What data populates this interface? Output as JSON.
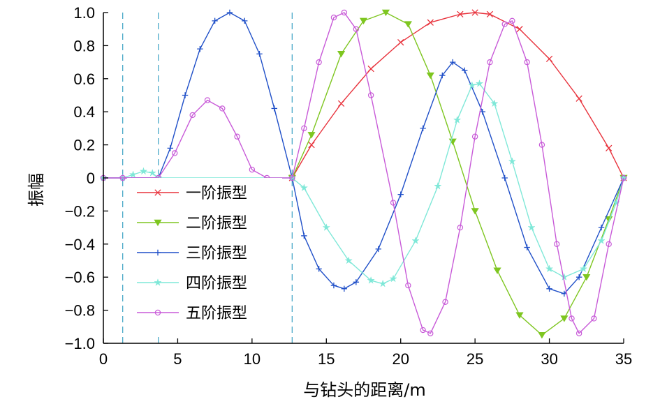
{
  "chart_data": {
    "type": "line",
    "xlabel": "与钻头的距离/m",
    "ylabel": "振幅",
    "xlim": [
      0,
      35
    ],
    "ylim": [
      -1.0,
      1.0
    ],
    "x_ticks": [
      0,
      5,
      10,
      15,
      20,
      25,
      30,
      35
    ],
    "y_ticks": [
      -1.0,
      -0.8,
      -0.6,
      -0.4,
      -0.2,
      0,
      0.2,
      0.4,
      0.6,
      0.8,
      1.0
    ],
    "x_tick_labels": [
      "0",
      "5",
      "10",
      "15",
      "20",
      "25",
      "30",
      "35"
    ],
    "y_tick_labels": [
      "−1.0",
      "−0.8",
      "−0.6",
      "−0.4",
      "−0.2",
      "0",
      "0.2",
      "0.4",
      "0.6",
      "0.8",
      "1.0"
    ],
    "grid": false,
    "legend_position": "left-lower",
    "reference_lines_x": [
      1.3,
      3.7,
      12.7
    ],
    "series": [
      {
        "name": "一阶振型",
        "color": "#e8323c",
        "marker": "x",
        "points": [
          [
            12.7,
            0
          ],
          [
            14,
            0.2
          ],
          [
            16,
            0.45
          ],
          [
            18,
            0.66
          ],
          [
            20,
            0.82
          ],
          [
            22,
            0.94
          ],
          [
            24,
            0.99
          ],
          [
            25,
            1.0
          ],
          [
            26,
            0.99
          ],
          [
            28,
            0.9
          ],
          [
            30,
            0.72
          ],
          [
            32,
            0.48
          ],
          [
            34,
            0.18
          ],
          [
            35,
            0
          ]
        ]
      },
      {
        "name": "二阶振型",
        "color": "#7ec620",
        "marker": "triangle-down",
        "points": [
          [
            12.7,
            0
          ],
          [
            14,
            0.26
          ],
          [
            16,
            0.75
          ],
          [
            17.5,
            0.95
          ],
          [
            19,
            1.0
          ],
          [
            20.5,
            0.93
          ],
          [
            22,
            0.62
          ],
          [
            23.5,
            0.22
          ],
          [
            25,
            -0.2
          ],
          [
            26.5,
            -0.56
          ],
          [
            28,
            -0.83
          ],
          [
            29.5,
            -0.95
          ],
          [
            31,
            -0.85
          ],
          [
            32.5,
            -0.6
          ],
          [
            34,
            -0.25
          ],
          [
            35,
            0
          ]
        ]
      },
      {
        "name": "三阶振型",
        "color": "#1f4fc8",
        "marker": "plus",
        "points": [
          [
            0,
            0
          ],
          [
            1.3,
            0
          ],
          [
            3.7,
            0
          ],
          [
            4.5,
            0.18
          ],
          [
            5.5,
            0.5
          ],
          [
            6.5,
            0.78
          ],
          [
            7.5,
            0.95
          ],
          [
            8.5,
            1.0
          ],
          [
            9.5,
            0.95
          ],
          [
            10.5,
            0.75
          ],
          [
            11.5,
            0.42
          ],
          [
            12.7,
            0
          ],
          [
            13.5,
            -0.35
          ],
          [
            14.5,
            -0.55
          ],
          [
            15.5,
            -0.65
          ],
          [
            16.2,
            -0.67
          ],
          [
            17,
            -0.63
          ],
          [
            18.5,
            -0.43
          ],
          [
            20,
            -0.1
          ],
          [
            21.5,
            0.3
          ],
          [
            22.8,
            0.62
          ],
          [
            23.5,
            0.7
          ],
          [
            24.3,
            0.65
          ],
          [
            25.5,
            0.4
          ],
          [
            27,
            0.0
          ],
          [
            28.5,
            -0.42
          ],
          [
            30,
            -0.67
          ],
          [
            31,
            -0.7
          ],
          [
            32,
            -0.6
          ],
          [
            33.5,
            -0.3
          ],
          [
            35,
            0
          ]
        ]
      },
      {
        "name": "四阶振型",
        "color": "#7fe8d8",
        "marker": "star",
        "points": [
          [
            0,
            0
          ],
          [
            1.3,
            0
          ],
          [
            2,
            0.02
          ],
          [
            2.7,
            0.04
          ],
          [
            3.3,
            0.03
          ],
          [
            3.7,
            0
          ],
          [
            12.7,
            0
          ],
          [
            13.5,
            -0.06
          ],
          [
            15,
            -0.3
          ],
          [
            16.5,
            -0.5
          ],
          [
            18,
            -0.62
          ],
          [
            18.8,
            -0.64
          ],
          [
            19.5,
            -0.61
          ],
          [
            21,
            -0.38
          ],
          [
            22.5,
            -0.05
          ],
          [
            23.8,
            0.35
          ],
          [
            24.8,
            0.56
          ],
          [
            25.3,
            0.57
          ],
          [
            26.3,
            0.45
          ],
          [
            27.5,
            0.1
          ],
          [
            28.8,
            -0.3
          ],
          [
            30,
            -0.55
          ],
          [
            31,
            -0.6
          ],
          [
            32.3,
            -0.55
          ],
          [
            33.5,
            -0.38
          ],
          [
            34.5,
            -0.15
          ],
          [
            35,
            0
          ]
        ]
      },
      {
        "name": "五阶振型",
        "color": "#c85ad8",
        "marker": "circle",
        "points": [
          [
            0,
            0
          ],
          [
            1.3,
            0
          ],
          [
            3.7,
            0
          ],
          [
            4.8,
            0.15
          ],
          [
            6,
            0.38
          ],
          [
            7,
            0.47
          ],
          [
            8,
            0.42
          ],
          [
            9,
            0.25
          ],
          [
            10,
            0.05
          ],
          [
            11,
            0.0
          ],
          [
            12.7,
            0
          ],
          [
            13.5,
            0.3
          ],
          [
            14.5,
            0.7
          ],
          [
            15.5,
            0.97
          ],
          [
            16.2,
            1.0
          ],
          [
            17,
            0.9
          ],
          [
            18,
            0.5
          ],
          [
            19.5,
            -0.15
          ],
          [
            20.5,
            -0.65
          ],
          [
            21.5,
            -0.92
          ],
          [
            22,
            -0.94
          ],
          [
            23,
            -0.75
          ],
          [
            24,
            -0.3
          ],
          [
            25,
            0.25
          ],
          [
            26,
            0.7
          ],
          [
            27,
            0.93
          ],
          [
            27.5,
            0.95
          ],
          [
            28.5,
            0.7
          ],
          [
            29.5,
            0.2
          ],
          [
            30.5,
            -0.4
          ],
          [
            31.5,
            -0.85
          ],
          [
            32,
            -0.94
          ],
          [
            33,
            -0.85
          ],
          [
            34,
            -0.4
          ],
          [
            35,
            0
          ]
        ]
      }
    ]
  }
}
